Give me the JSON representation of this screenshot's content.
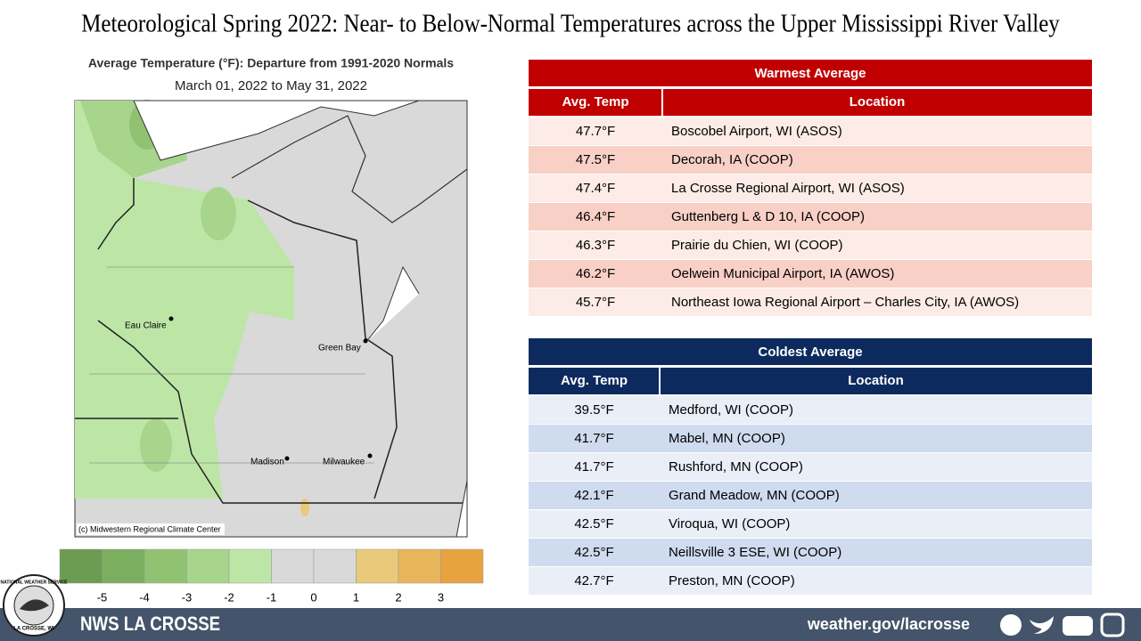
{
  "header": {
    "title": "Meteorological Spring 2022:  Near- to Below-Normal Temperatures across the Upper Mississippi River Valley"
  },
  "map": {
    "title": "Average Temperature (°F): Departure from 1991-2020 Normals",
    "subtitle": "March 01, 2022 to May 31, 2022",
    "credit": "(c) Midwestern Regional Climate Center",
    "cities": [
      "Eau Claire",
      "Green Bay",
      "Madison",
      "Milwaukee"
    ]
  },
  "legend": {
    "labels": [
      -5,
      -4,
      -3,
      -2,
      -1,
      0,
      1,
      2,
      3
    ],
    "colors": [
      "#6b9c52",
      "#7cae5f",
      "#91c271",
      "#a7d58c",
      "#bde6a6",
      "#d9d9d9",
      "#d9d9d9",
      "#e9c97a",
      "#e8b65a",
      "#e8a23f"
    ]
  },
  "warmest": {
    "title": "Warmest  Average",
    "columns": [
      "Avg. Temp",
      "Location"
    ],
    "rows": [
      [
        "47.7°F",
        "Boscobel Airport, WI (ASOS)"
      ],
      [
        "47.5°F",
        "Decorah, IA (COOP)"
      ],
      [
        "47.4°F",
        "La Crosse Regional Airport, WI (ASOS)"
      ],
      [
        "46.4°F",
        "Guttenberg L & D 10, IA (COOP)"
      ],
      [
        "46.3°F",
        "Prairie du Chien, WI (COOP)"
      ],
      [
        "46.2°F",
        "Oelwein Municipal Airport, IA (AWOS)"
      ],
      [
        "45.7°F",
        "Northeast Iowa Regional Airport – Charles City, IA (AWOS)"
      ]
    ]
  },
  "coldest": {
    "title": "Coldest Average",
    "columns": [
      "Avg. Temp",
      "Location"
    ],
    "rows": [
      [
        "39.5°F",
        "Medford, WI (COOP)"
      ],
      [
        "41.7°F",
        "Mabel, MN (COOP)"
      ],
      [
        "41.7°F",
        "Rushford, MN (COOP)"
      ],
      [
        "42.1°F",
        "Grand Meadow, MN (COOP)"
      ],
      [
        "42.5°F",
        "Viroqua, WI (COOP)"
      ],
      [
        "42.5°F",
        "Neillsville 3 ESE, WI (COOP)"
      ],
      [
        "42.7°F",
        "Preston, MN (COOP)"
      ]
    ]
  },
  "footer": {
    "office": "NWS LA CROSSE",
    "url": "weather.gov/lacrosse",
    "logo_top": "NATIONAL WEATHER SERVICE",
    "logo_bottom": "LA CROSSE, WI"
  }
}
